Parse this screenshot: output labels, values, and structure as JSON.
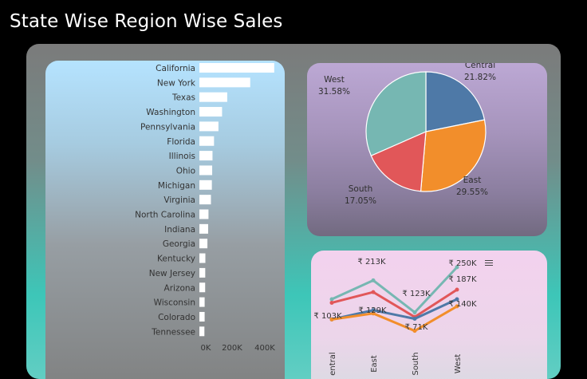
{
  "page": {
    "title": "State Wise Region Wise Sales"
  },
  "chart_data": [
    {
      "type": "bar",
      "orientation": "horizontal",
      "categories": [
        "California",
        "New York",
        "Texas",
        "Washington",
        "Pennsylvania",
        "Florida",
        "Illinois",
        "Ohio",
        "Michigan",
        "Virginia",
        "North Carolina",
        "Indiana",
        "Georgia",
        "Kentucky",
        "New Jersey",
        "Arizona",
        "Wisconsin",
        "Colorado",
        "Tennessee"
      ],
      "values": [
        457688,
        310876,
        170188,
        138641,
        116512,
        89474,
        80166,
        78258,
        76270,
        70637,
        55603,
        53555,
        49096,
        36591,
        35764,
        35282,
        32114,
        32108,
        30662
      ],
      "xticks": [
        "0K",
        "200K",
        "400K"
      ],
      "xlim": [
        0,
        480000
      ],
      "bar_color": "#ffffff",
      "grid": false
    },
    {
      "type": "pie",
      "labels": [
        "Central",
        "East",
        "South",
        "West"
      ],
      "values": [
        21.82,
        29.55,
        17.05,
        31.58
      ],
      "value_labels": [
        "21.82%",
        "29.55%",
        "17.05%",
        "31.58%"
      ],
      "colors": [
        "#4e79a7",
        "#f28e2b",
        "#e15759",
        "#76b7b2"
      ]
    },
    {
      "type": "line",
      "categories": [
        "Central",
        "East",
        "South",
        "West"
      ],
      "category_labels": [
        "entral",
        "East",
        "South",
        "West"
      ],
      "series": [
        {
          "values": [
            160,
            213,
            123,
            250
          ],
          "color": "#76b7b2"
        },
        {
          "values": [
            150,
            180,
            110,
            187
          ],
          "color": "#e15759"
        },
        {
          "values": [
            103,
            129,
            105,
            160
          ],
          "color": "#4e79a7"
        },
        {
          "values": [
            103,
            120,
            71,
            140
          ],
          "color": "#f28e2b"
        }
      ],
      "data_labels": [
        "₹ 213K",
        "₹ 250K",
        "₹ 187K",
        "₹ 123K",
        "₹ 129K",
        "₹ 103K",
        "₹ 140K",
        "₹ 71K"
      ],
      "ylim": [
        50,
        270
      ]
    }
  ]
}
